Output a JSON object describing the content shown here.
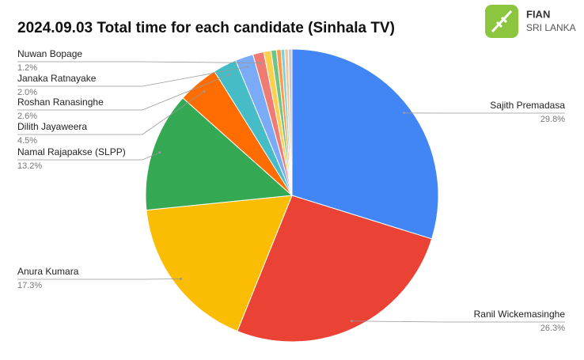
{
  "chart_data": {
    "type": "pie",
    "title": "2024.09.03 Total time for each candidate (Sinhala TV)",
    "categories": [
      "Sajith Premadasa",
      "Ranil Wickemasinghe",
      "Anura Kumara",
      "Namal Rajapakse (SLPP)",
      "Dilith Jayaweera",
      "Roshan Ranasinghe",
      "Janaka Ratnayake",
      "Nuwan Bopage",
      null,
      null,
      null,
      null,
      null,
      null
    ],
    "values": [
      29.8,
      26.3,
      17.3,
      13.2,
      4.5,
      2.6,
      2.0,
      1.2,
      0.8,
      0.6,
      0.5,
      0.4,
      0.4,
      0.4
    ],
    "value_labels": [
      "29.8%",
      "26.3%",
      "17.3%",
      "13.2%",
      "4.5%",
      "2.6%",
      "2.0%",
      "1.2%",
      null,
      null,
      null,
      null,
      null,
      null
    ],
    "colors": [
      "#4285f4",
      "#ea4335",
      "#fbbc04",
      "#34a853",
      "#ff6d01",
      "#46bdc6",
      "#7baaf7",
      "#f07b72",
      "#fcd04f",
      "#71c287",
      "#ff994d",
      "#7ed1d7",
      "#f4c7a0",
      "#c9cbd1"
    ]
  },
  "logo": {
    "name": "FIAN",
    "country": "SRI LANKA"
  }
}
